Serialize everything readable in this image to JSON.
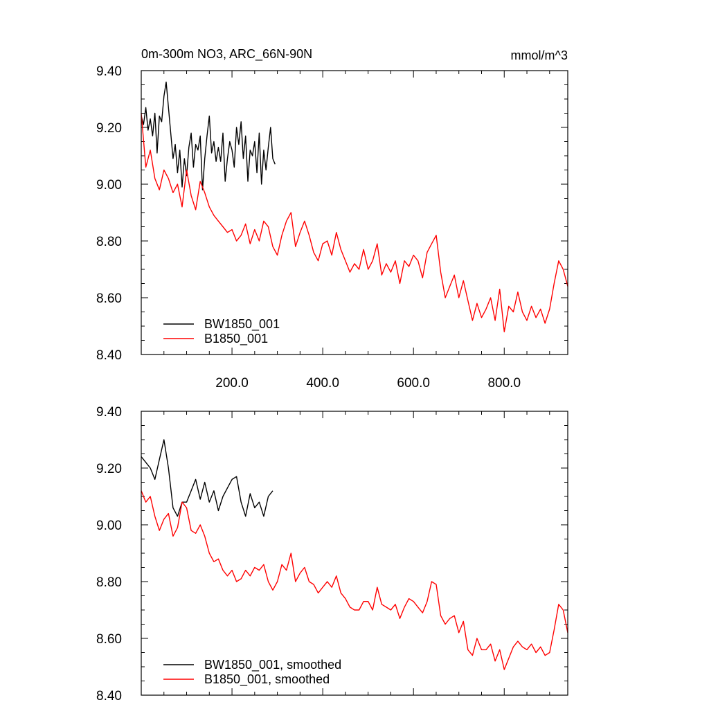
{
  "chart_data": [
    {
      "type": "line",
      "title": "0m-300m NO3, ARC_66N-90N",
      "units": "mmol/m^3",
      "xlim": [
        0,
        940
      ],
      "ylim": [
        8.4,
        9.4
      ],
      "y_ticks": [
        "9.40",
        "9.20",
        "9.00",
        "8.80",
        "8.60",
        "8.40"
      ],
      "x_ticks": [
        "200.0",
        "400.0",
        "600.0",
        "800.0"
      ],
      "legend_position": "bottom-left",
      "grid": false,
      "series": [
        {
          "name": "BW1850_001",
          "color": "#000000",
          "x": [
            0,
            5,
            10,
            15,
            20,
            25,
            30,
            35,
            40,
            45,
            50,
            55,
            60,
            65,
            70,
            75,
            80,
            85,
            90,
            95,
            100,
            105,
            110,
            115,
            120,
            125,
            130,
            135,
            140,
            145,
            150,
            155,
            160,
            165,
            170,
            175,
            180,
            185,
            190,
            195,
            200,
            205,
            210,
            215,
            220,
            225,
            230,
            235,
            240,
            245,
            250,
            255,
            260,
            265,
            270,
            275,
            280,
            285,
            290,
            295
          ],
          "values": [
            9.24,
            9.21,
            9.27,
            9.19,
            9.23,
            9.17,
            9.25,
            9.11,
            9.24,
            9.22,
            9.31,
            9.36,
            9.27,
            9.18,
            9.09,
            9.14,
            9.04,
            9.12,
            8.99,
            9.09,
            9.03,
            9.13,
            9.18,
            9.06,
            9.14,
            9.12,
            9.17,
            8.98,
            9.09,
            9.17,
            9.24,
            9.11,
            9.15,
            9.08,
            9.13,
            9.08,
            9.18,
            9.01,
            9.09,
            9.15,
            9.12,
            9.06,
            9.2,
            9.14,
            9.22,
            9.09,
            9.17,
            9.01,
            9.12,
            9.1,
            9.15,
            9.04,
            9.18,
            9.0,
            9.12,
            9.05,
            9.13,
            9.2,
            9.09,
            9.07
          ]
        },
        {
          "name": "B1850_001",
          "color": "#ff0000",
          "x": [
            0,
            10,
            20,
            30,
            40,
            50,
            60,
            70,
            80,
            90,
            100,
            110,
            120,
            130,
            140,
            150,
            160,
            170,
            180,
            190,
            200,
            210,
            220,
            230,
            240,
            250,
            260,
            270,
            280,
            290,
            300,
            310,
            320,
            330,
            340,
            350,
            360,
            370,
            380,
            390,
            400,
            410,
            420,
            430,
            440,
            450,
            460,
            470,
            480,
            490,
            500,
            510,
            520,
            530,
            540,
            550,
            560,
            570,
            580,
            590,
            600,
            610,
            620,
            630,
            640,
            650,
            660,
            670,
            680,
            690,
            700,
            710,
            720,
            730,
            740,
            750,
            760,
            770,
            780,
            790,
            800,
            810,
            820,
            830,
            840,
            850,
            860,
            870,
            880,
            890,
            900,
            910,
            920,
            930,
            940
          ],
          "values": [
            9.25,
            9.06,
            9.12,
            9.02,
            8.98,
            9.05,
            9.02,
            8.97,
            9.0,
            8.92,
            9.05,
            8.96,
            8.91,
            9.01,
            8.97,
            8.92,
            8.89,
            8.87,
            8.85,
            8.83,
            8.84,
            8.8,
            8.82,
            8.86,
            8.79,
            8.84,
            8.8,
            8.87,
            8.85,
            8.78,
            8.75,
            8.82,
            8.87,
            8.9,
            8.78,
            8.83,
            8.87,
            8.82,
            8.76,
            8.73,
            8.79,
            8.8,
            8.75,
            8.83,
            8.77,
            8.73,
            8.69,
            8.72,
            8.7,
            8.77,
            8.7,
            8.73,
            8.79,
            8.68,
            8.72,
            8.69,
            8.73,
            8.65,
            8.73,
            8.71,
            8.75,
            8.73,
            8.67,
            8.76,
            8.79,
            8.82,
            8.69,
            8.6,
            8.64,
            8.68,
            8.6,
            8.66,
            8.59,
            8.52,
            8.58,
            8.53,
            8.56,
            8.6,
            8.52,
            8.63,
            8.48,
            8.57,
            8.55,
            8.62,
            8.55,
            8.52,
            8.57,
            8.53,
            8.56,
            8.51,
            8.56,
            8.65,
            8.73,
            8.7,
            8.64
          ]
        }
      ]
    },
    {
      "type": "line",
      "xlim": [
        0,
        940
      ],
      "ylim": [
        8.4,
        9.4
      ],
      "y_ticks": [
        "9.40",
        "9.20",
        "9.00",
        "8.80",
        "8.60",
        "8.40"
      ],
      "legend_position": "bottom-left",
      "grid": false,
      "series": [
        {
          "name": "BW1850_001, smoothed",
          "color": "#000000",
          "x": [
            0,
            10,
            20,
            30,
            40,
            50,
            60,
            70,
            80,
            90,
            100,
            110,
            120,
            130,
            140,
            150,
            160,
            170,
            180,
            190,
            200,
            210,
            220,
            230,
            240,
            250,
            260,
            270,
            280,
            290
          ],
          "values": [
            9.24,
            9.22,
            9.2,
            9.16,
            9.23,
            9.3,
            9.2,
            9.06,
            9.03,
            9.08,
            9.08,
            9.12,
            9.16,
            9.09,
            9.15,
            9.08,
            9.12,
            9.05,
            9.1,
            9.13,
            9.16,
            9.17,
            9.08,
            9.03,
            9.11,
            9.06,
            9.08,
            9.03,
            9.1,
            9.12
          ]
        },
        {
          "name": "B1850_001, smoothed",
          "color": "#ff0000",
          "x": [
            0,
            10,
            20,
            30,
            40,
            50,
            60,
            70,
            80,
            90,
            100,
            110,
            120,
            130,
            140,
            150,
            160,
            170,
            180,
            190,
            200,
            210,
            220,
            230,
            240,
            250,
            260,
            270,
            280,
            290,
            300,
            310,
            320,
            330,
            340,
            350,
            360,
            370,
            380,
            390,
            400,
            410,
            420,
            430,
            440,
            450,
            460,
            470,
            480,
            490,
            500,
            510,
            520,
            530,
            540,
            550,
            560,
            570,
            580,
            590,
            600,
            610,
            620,
            630,
            640,
            650,
            660,
            670,
            680,
            690,
            700,
            710,
            720,
            730,
            740,
            750,
            760,
            770,
            780,
            790,
            800,
            810,
            820,
            830,
            840,
            850,
            860,
            870,
            880,
            890,
            900,
            910,
            920,
            930,
            940
          ],
          "values": [
            9.12,
            9.08,
            9.1,
            9.03,
            8.98,
            9.02,
            9.04,
            8.96,
            8.99,
            9.08,
            9.06,
            8.98,
            8.97,
            9.0,
            8.96,
            8.9,
            8.87,
            8.88,
            8.84,
            8.82,
            8.84,
            8.8,
            8.81,
            8.84,
            8.82,
            8.85,
            8.84,
            8.86,
            8.8,
            8.77,
            8.8,
            8.86,
            8.84,
            8.9,
            8.8,
            8.83,
            8.85,
            8.8,
            8.79,
            8.76,
            8.78,
            8.8,
            8.78,
            8.82,
            8.76,
            8.74,
            8.71,
            8.7,
            8.7,
            8.73,
            8.73,
            8.7,
            8.78,
            8.72,
            8.71,
            8.7,
            8.72,
            8.67,
            8.71,
            8.74,
            8.73,
            8.71,
            8.69,
            8.73,
            8.8,
            8.79,
            8.68,
            8.65,
            8.67,
            8.68,
            8.62,
            8.66,
            8.56,
            8.54,
            8.6,
            8.56,
            8.56,
            8.58,
            8.52,
            8.56,
            8.49,
            8.53,
            8.57,
            8.59,
            8.57,
            8.56,
            8.58,
            8.55,
            8.57,
            8.54,
            8.55,
            8.63,
            8.72,
            8.7,
            8.62
          ]
        }
      ]
    }
  ]
}
